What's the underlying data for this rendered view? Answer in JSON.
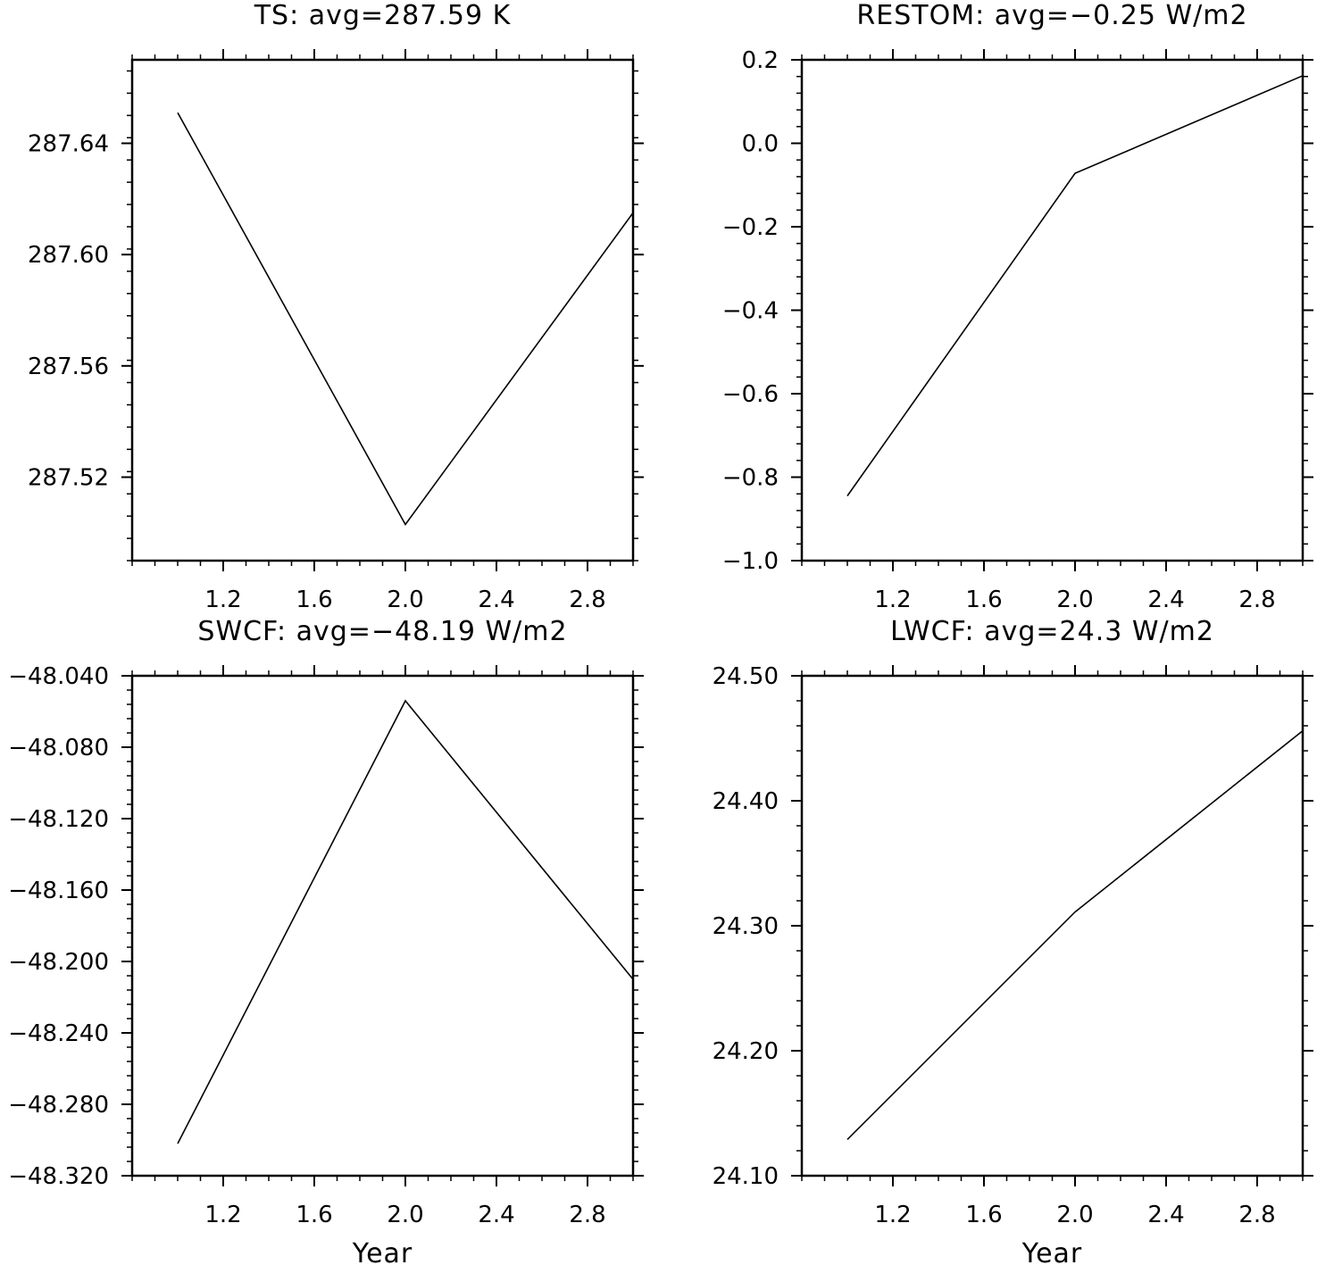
{
  "chart_data": [
    {
      "type": "line",
      "title": "TS: avg=287.59 K",
      "xlabel": "",
      "ylabel": "",
      "x": [
        1.0,
        2.0,
        3.0
      ],
      "series": [
        {
          "values": [
            287.651,
            287.503,
            287.615
          ]
        }
      ],
      "xlim": [
        0.8,
        3.0
      ],
      "ylim": [
        287.49,
        287.67
      ],
      "xticks": [
        "1.2",
        "1.6",
        "2.0",
        "2.4",
        "2.8"
      ],
      "yticks": [
        "287.52",
        "287.56",
        "287.60",
        "287.64"
      ],
      "grid": false
    },
    {
      "type": "line",
      "title": "RESTOM: avg=−0.25 W/m2",
      "xlabel": "",
      "ylabel": "",
      "x": [
        1.0,
        2.0,
        3.0
      ],
      "series": [
        {
          "values": [
            -0.845,
            -0.072,
            0.162
          ]
        }
      ],
      "xlim": [
        0.8,
        3.0
      ],
      "ylim": [
        -1.0,
        0.2
      ],
      "xticks": [
        "1.2",
        "1.6",
        "2.0",
        "2.4",
        "2.8"
      ],
      "yticks": [
        "−1.0",
        "−0.8",
        "−0.6",
        "−0.4",
        "−0.2",
        "0.0",
        "0.2"
      ],
      "grid": false
    },
    {
      "type": "line",
      "title": "SWCF: avg=−48.19 W/m2",
      "xlabel": "Year",
      "ylabel": "",
      "x": [
        1.0,
        2.0,
        3.0
      ],
      "series": [
        {
          "values": [
            -48.302,
            -48.054,
            -48.21
          ]
        }
      ],
      "xlim": [
        0.8,
        3.0
      ],
      "ylim": [
        -48.32,
        -48.04
      ],
      "xticks": [
        "1.2",
        "1.6",
        "2.0",
        "2.4",
        "2.8"
      ],
      "yticks": [
        "−48.040",
        "−48.080",
        "−48.120",
        "−48.160",
        "−48.200",
        "−48.240",
        "−48.280",
        "−48.320"
      ],
      "grid": false
    },
    {
      "type": "line",
      "title": "LWCF: avg=24.3 W/m2",
      "xlabel": "Year",
      "ylabel": "",
      "x": [
        1.0,
        2.0,
        3.0
      ],
      "series": [
        {
          "values": [
            24.129,
            24.311,
            24.456
          ]
        }
      ],
      "xlim": [
        0.8,
        3.0
      ],
      "ylim": [
        24.1,
        24.5
      ],
      "xticks": [
        "1.2",
        "1.6",
        "2.0",
        "2.4",
        "2.8"
      ],
      "yticks": [
        "24.10",
        "24.20",
        "24.30",
        "24.40",
        "24.50"
      ],
      "grid": false
    }
  ]
}
